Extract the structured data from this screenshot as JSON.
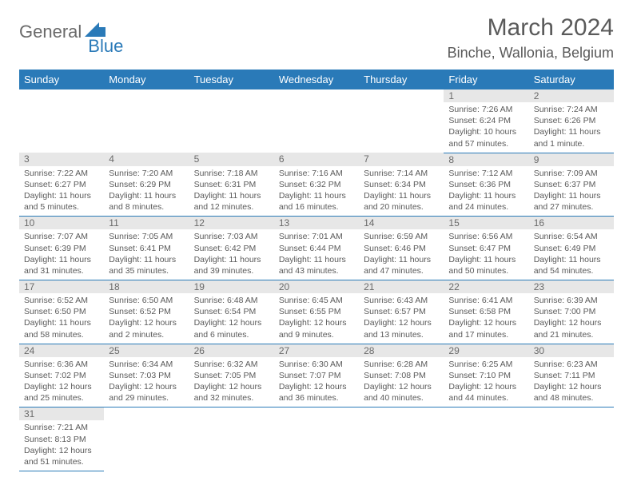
{
  "brand": {
    "part1": "General",
    "part2": "Blue"
  },
  "title": {
    "month": "March 2024",
    "location": "Binche, Wallonia, Belgium"
  },
  "colors": {
    "accent": "#2a7ab8",
    "headerText": "#ffffff",
    "dayBg": "#e7e7e7",
    "text": "#5a5a5a"
  },
  "weekdays": [
    "Sunday",
    "Monday",
    "Tuesday",
    "Wednesday",
    "Thursday",
    "Friday",
    "Saturday"
  ],
  "weeks": [
    [
      null,
      null,
      null,
      null,
      null,
      {
        "n": "1",
        "sr": "7:26 AM",
        "ss": "6:24 PM",
        "dl": "10 hours and 57 minutes."
      },
      {
        "n": "2",
        "sr": "7:24 AM",
        "ss": "6:26 PM",
        "dl": "11 hours and 1 minute."
      }
    ],
    [
      {
        "n": "3",
        "sr": "7:22 AM",
        "ss": "6:27 PM",
        "dl": "11 hours and 5 minutes."
      },
      {
        "n": "4",
        "sr": "7:20 AM",
        "ss": "6:29 PM",
        "dl": "11 hours and 8 minutes."
      },
      {
        "n": "5",
        "sr": "7:18 AM",
        "ss": "6:31 PM",
        "dl": "11 hours and 12 minutes."
      },
      {
        "n": "6",
        "sr": "7:16 AM",
        "ss": "6:32 PM",
        "dl": "11 hours and 16 minutes."
      },
      {
        "n": "7",
        "sr": "7:14 AM",
        "ss": "6:34 PM",
        "dl": "11 hours and 20 minutes."
      },
      {
        "n": "8",
        "sr": "7:12 AM",
        "ss": "6:36 PM",
        "dl": "11 hours and 24 minutes."
      },
      {
        "n": "9",
        "sr": "7:09 AM",
        "ss": "6:37 PM",
        "dl": "11 hours and 27 minutes."
      }
    ],
    [
      {
        "n": "10",
        "sr": "7:07 AM",
        "ss": "6:39 PM",
        "dl": "11 hours and 31 minutes."
      },
      {
        "n": "11",
        "sr": "7:05 AM",
        "ss": "6:41 PM",
        "dl": "11 hours and 35 minutes."
      },
      {
        "n": "12",
        "sr": "7:03 AM",
        "ss": "6:42 PM",
        "dl": "11 hours and 39 minutes."
      },
      {
        "n": "13",
        "sr": "7:01 AM",
        "ss": "6:44 PM",
        "dl": "11 hours and 43 minutes."
      },
      {
        "n": "14",
        "sr": "6:59 AM",
        "ss": "6:46 PM",
        "dl": "11 hours and 47 minutes."
      },
      {
        "n": "15",
        "sr": "6:56 AM",
        "ss": "6:47 PM",
        "dl": "11 hours and 50 minutes."
      },
      {
        "n": "16",
        "sr": "6:54 AM",
        "ss": "6:49 PM",
        "dl": "11 hours and 54 minutes."
      }
    ],
    [
      {
        "n": "17",
        "sr": "6:52 AM",
        "ss": "6:50 PM",
        "dl": "11 hours and 58 minutes."
      },
      {
        "n": "18",
        "sr": "6:50 AM",
        "ss": "6:52 PM",
        "dl": "12 hours and 2 minutes."
      },
      {
        "n": "19",
        "sr": "6:48 AM",
        "ss": "6:54 PM",
        "dl": "12 hours and 6 minutes."
      },
      {
        "n": "20",
        "sr": "6:45 AM",
        "ss": "6:55 PM",
        "dl": "12 hours and 9 minutes."
      },
      {
        "n": "21",
        "sr": "6:43 AM",
        "ss": "6:57 PM",
        "dl": "12 hours and 13 minutes."
      },
      {
        "n": "22",
        "sr": "6:41 AM",
        "ss": "6:58 PM",
        "dl": "12 hours and 17 minutes."
      },
      {
        "n": "23",
        "sr": "6:39 AM",
        "ss": "7:00 PM",
        "dl": "12 hours and 21 minutes."
      }
    ],
    [
      {
        "n": "24",
        "sr": "6:36 AM",
        "ss": "7:02 PM",
        "dl": "12 hours and 25 minutes."
      },
      {
        "n": "25",
        "sr": "6:34 AM",
        "ss": "7:03 PM",
        "dl": "12 hours and 29 minutes."
      },
      {
        "n": "26",
        "sr": "6:32 AM",
        "ss": "7:05 PM",
        "dl": "12 hours and 32 minutes."
      },
      {
        "n": "27",
        "sr": "6:30 AM",
        "ss": "7:07 PM",
        "dl": "12 hours and 36 minutes."
      },
      {
        "n": "28",
        "sr": "6:28 AM",
        "ss": "7:08 PM",
        "dl": "12 hours and 40 minutes."
      },
      {
        "n": "29",
        "sr": "6:25 AM",
        "ss": "7:10 PM",
        "dl": "12 hours and 44 minutes."
      },
      {
        "n": "30",
        "sr": "6:23 AM",
        "ss": "7:11 PM",
        "dl": "12 hours and 48 minutes."
      }
    ],
    [
      {
        "n": "31",
        "sr": "7:21 AM",
        "ss": "8:13 PM",
        "dl": "12 hours and 51 minutes."
      },
      null,
      null,
      null,
      null,
      null,
      null
    ]
  ],
  "labels": {
    "sunrise": "Sunrise:",
    "sunset": "Sunset:",
    "daylight": "Daylight:"
  }
}
